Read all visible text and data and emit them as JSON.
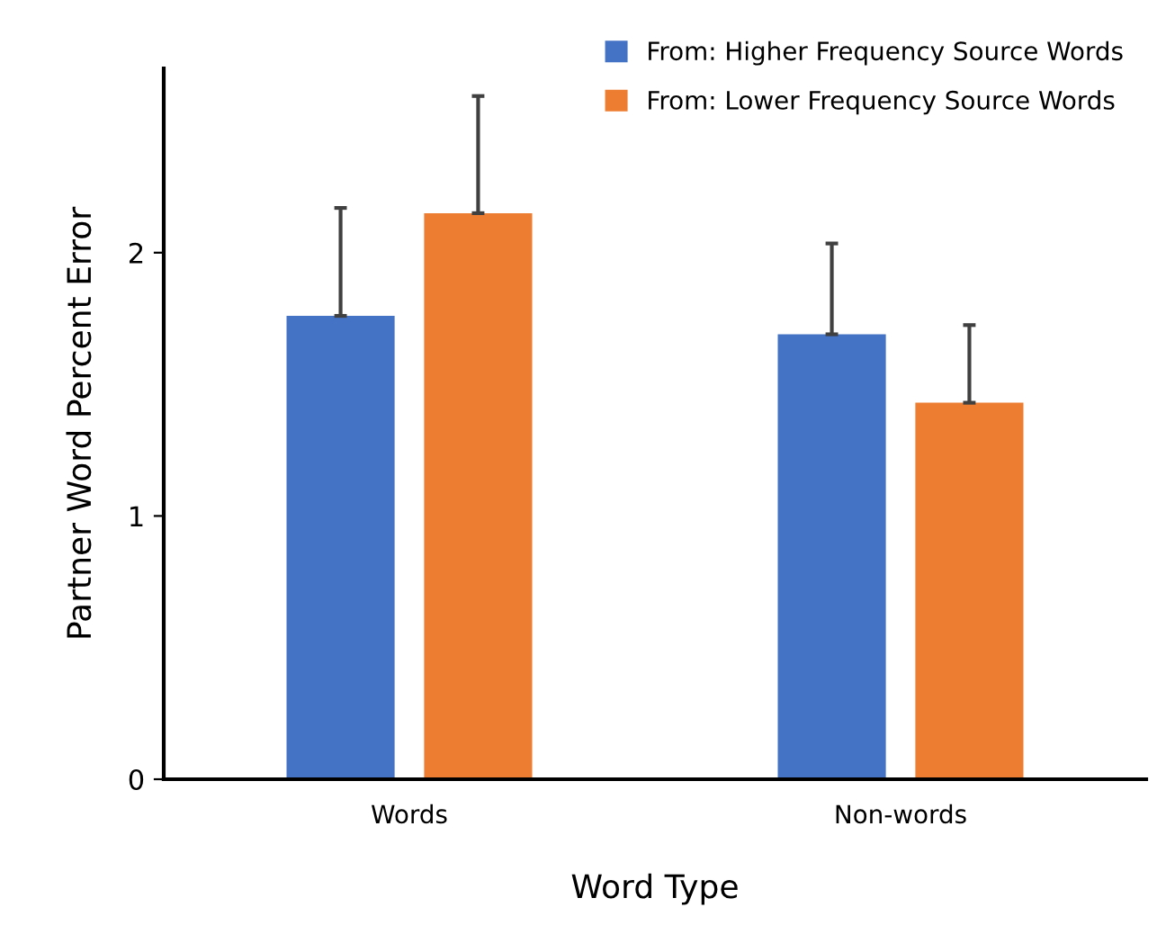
{
  "chart_data": {
    "type": "bar",
    "xlabel": "Word Type",
    "ylabel": "Partner Word Percent Error",
    "categories": [
      "Words",
      "Non-words"
    ],
    "series": [
      {
        "name": "From: Higher Frequency Source Words",
        "color": "#4472c4",
        "values": [
          1.76,
          1.69
        ],
        "errors": [
          [
            1.76,
            2.17
          ],
          [
            1.69,
            2.035
          ]
        ]
      },
      {
        "name": "From: Lower Frequency Source Words",
        "color": "#ed7d31",
        "values": [
          2.15,
          1.43
        ],
        "errors": [
          [
            2.15,
            2.595
          ],
          [
            1.43,
            1.725
          ]
        ]
      }
    ],
    "ylim": [
      0,
      2.7
    ],
    "yticks": [
      0,
      1,
      2
    ],
    "grid": false,
    "legend": "top right"
  }
}
